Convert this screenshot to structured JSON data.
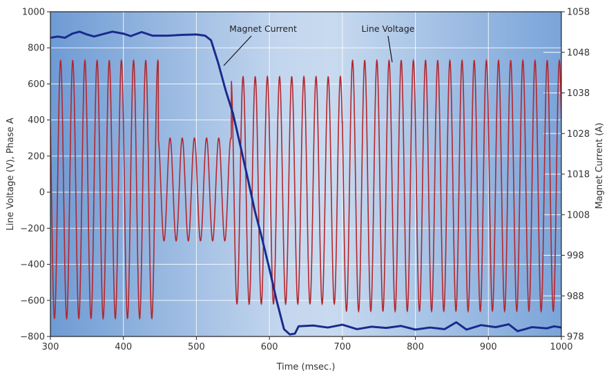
{
  "chart_data": {
    "type": "line",
    "title": "",
    "xlabel": "Time (msec.)",
    "ylabel_left": "Line Voltage (V), Phase A",
    "ylabel_right": "Magnet Current (A)",
    "xlim": [
      300,
      1000
    ],
    "ylim_left": [
      -800,
      1000
    ],
    "ylim_right": [
      978,
      1058
    ],
    "x_ticks": [
      "300",
      "400",
      "500",
      "600",
      "700",
      "800",
      "900",
      "1000"
    ],
    "y_ticks_left": [
      "1000",
      "800",
      "600",
      "400",
      "200",
      "0",
      "-200",
      "-400",
      "-600",
      "-800"
    ],
    "y_ticks_right": [
      "1058",
      "1048",
      "1038",
      "1028",
      "1018",
      "1008",
      "998",
      "988",
      "978"
    ],
    "grid": true,
    "annotations": [
      {
        "text": "Magnet Current",
        "series": "Magnet Current"
      },
      {
        "text": "Line Voltage",
        "series": "Line Voltage"
      }
    ],
    "series": [
      {
        "name": "Line Voltage",
        "axis": "left",
        "color": "#b3262c",
        "description_values": {
          "frequency_hz": 60,
          "segments": [
            {
              "x_start": 300,
              "x_end": 448,
              "peak": 730,
              "trough": -700
            },
            {
              "x_start": 448,
              "x_end": 548,
              "peak": 300,
              "trough": -270
            },
            {
              "x_start": 548,
              "x_end": 700,
              "peak": 640,
              "trough": -620
            },
            {
              "x_start": 700,
              "x_end": 1000,
              "peak": 730,
              "trough": -660
            }
          ]
        }
      },
      {
        "name": "Magnet Current",
        "axis": "right",
        "color": "#1a2a8c",
        "points": [
          [
            300,
            1051.6
          ],
          [
            310,
            1051.9
          ],
          [
            320,
            1051.6
          ],
          [
            330,
            1052.6
          ],
          [
            340,
            1053.1
          ],
          [
            350,
            1052.4
          ],
          [
            360,
            1051.9
          ],
          [
            370,
            1052.4
          ],
          [
            385,
            1053.1
          ],
          [
            400,
            1052.6
          ],
          [
            410,
            1052.0
          ],
          [
            425,
            1053.0
          ],
          [
            440,
            1052.1
          ],
          [
            460,
            1052.1
          ],
          [
            480,
            1052.3
          ],
          [
            500,
            1052.4
          ],
          [
            512,
            1052.1
          ],
          [
            520,
            1051.0
          ],
          [
            530,
            1045.3
          ],
          [
            540,
            1038.7
          ],
          [
            550,
            1033.0
          ],
          [
            560,
            1025.2
          ],
          [
            570,
            1017.2
          ],
          [
            580,
            1009.0
          ],
          [
            590,
            1002.1
          ],
          [
            600,
            994.7
          ],
          [
            610,
            986.8
          ],
          [
            620,
            979.8
          ],
          [
            628,
            978.5
          ],
          [
            635,
            978.7
          ],
          [
            640,
            980.5
          ],
          [
            660,
            980.7
          ],
          [
            680,
            980.2
          ],
          [
            700,
            980.9
          ],
          [
            720,
            979.8
          ],
          [
            740,
            980.4
          ],
          [
            760,
            980.1
          ],
          [
            780,
            980.6
          ],
          [
            800,
            979.7
          ],
          [
            820,
            980.2
          ],
          [
            840,
            979.8
          ],
          [
            856,
            981.5
          ],
          [
            870,
            979.7
          ],
          [
            890,
            980.8
          ],
          [
            910,
            980.3
          ],
          [
            928,
            981.0
          ],
          [
            940,
            979.3
          ],
          [
            960,
            980.3
          ],
          [
            980,
            980.0
          ],
          [
            990,
            980.5
          ],
          [
            1000,
            980.2
          ]
        ]
      }
    ]
  }
}
